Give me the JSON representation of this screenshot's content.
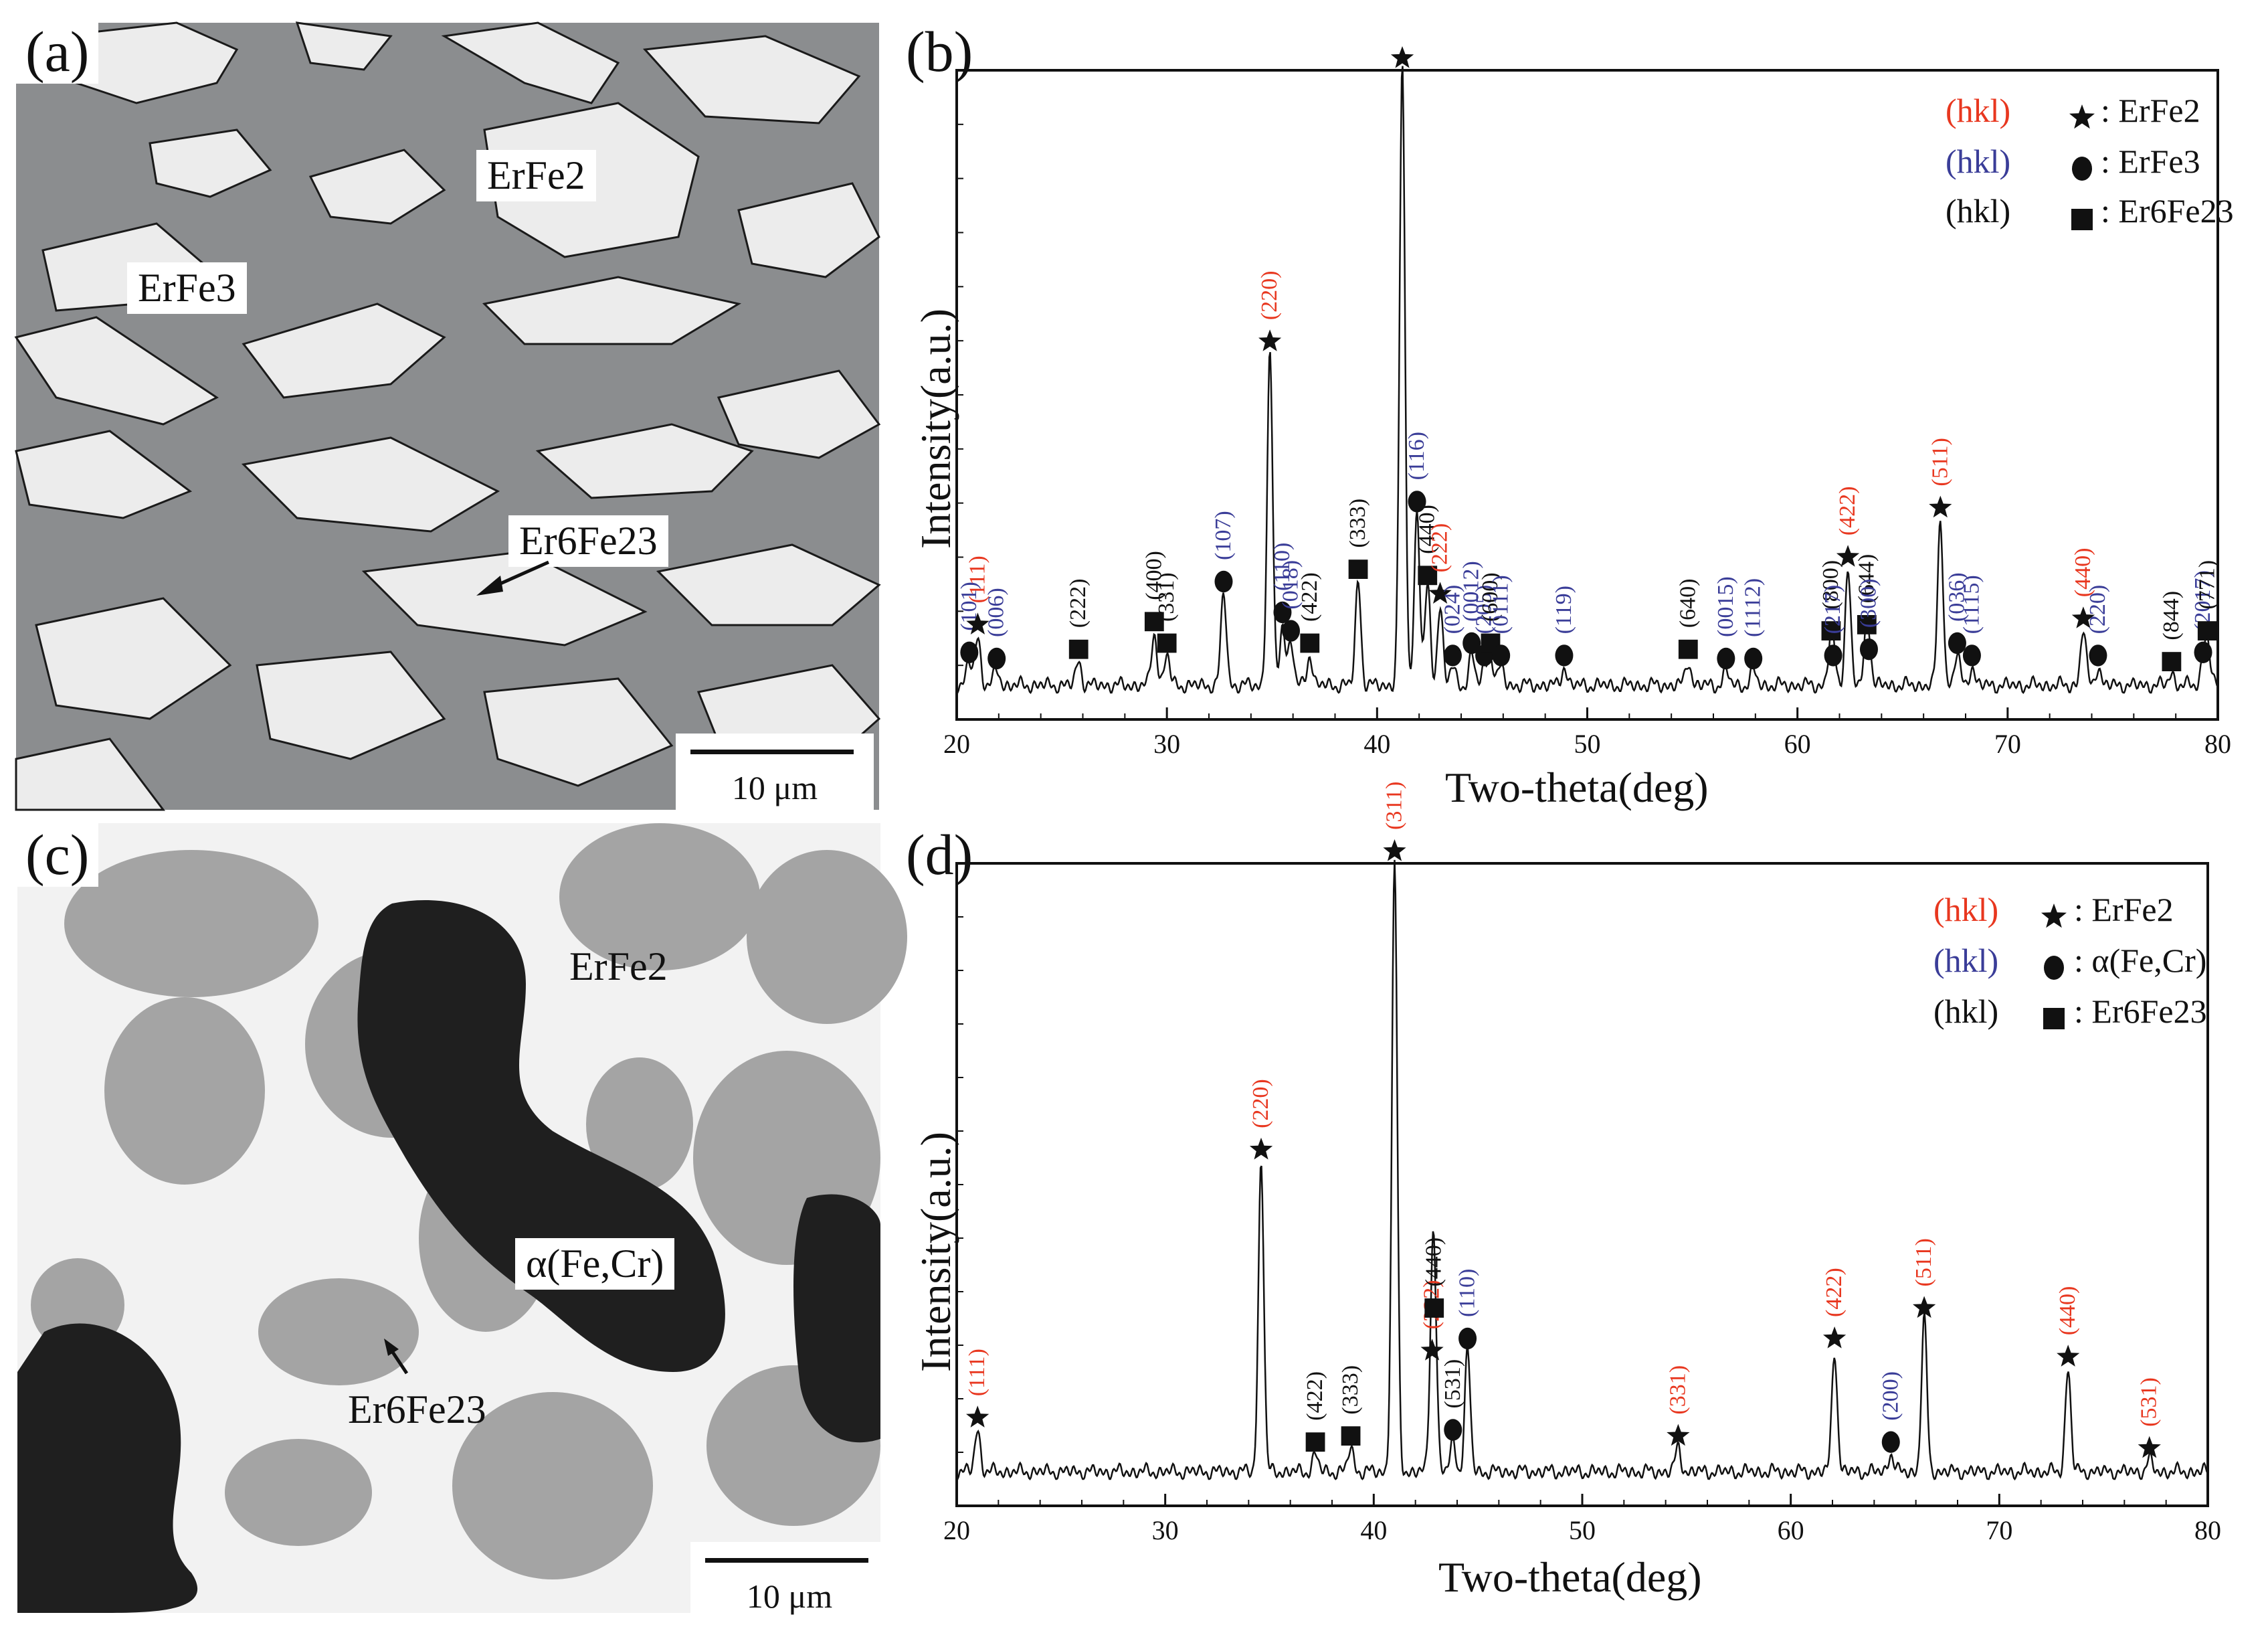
{
  "panel_a": {
    "label": "(a)",
    "phases": [
      "ErFe2",
      "ErFe3",
      "Er6Fe23"
    ],
    "scale_label": "10 μm"
  },
  "panel_c": {
    "label": "(c)",
    "phases": [
      "ErFe2",
      "α(Fe,Cr)",
      "Er6Fe23"
    ],
    "scale_label": "10 μm"
  },
  "colors": {
    "erfe2": "#e8371f",
    "erfe3": "#3a3d98",
    "er6fe23": "#111111"
  },
  "chart_data": [
    {
      "type": "line",
      "panel_label": "(b)",
      "xlabel": "Two-theta(deg)",
      "ylabel": "Intensity(a.u.)",
      "xlim": [
        20,
        80
      ],
      "ylim": [
        0,
        100
      ],
      "x_ticks": [
        "20",
        "30",
        "40",
        "50",
        "60",
        "70",
        "80"
      ],
      "legend": [
        {
          "hkl": "(hkl)",
          "symbol": "star",
          "phase": ": ErFe2",
          "color_key": "erfe2"
        },
        {
          "hkl": "(hkl)",
          "symbol": "circle",
          "phase": ": ErFe3",
          "color_key": "erfe3"
        },
        {
          "hkl": "(hkl)",
          "symbol": "square",
          "phase": ": Er6Fe23",
          "color_key": "er6fe23"
        }
      ],
      "peaks": [
        {
          "x": 20.6,
          "h": 3.5,
          "sym": "circle",
          "label": "(101)",
          "phase": "erfe3"
        },
        {
          "x": 21.0,
          "h": 8,
          "sym": "star",
          "label": "(111)",
          "phase": "erfe2"
        },
        {
          "x": 21.9,
          "h": 2.5,
          "sym": "circle",
          "label": "(006)",
          "phase": "erfe3"
        },
        {
          "x": 25.8,
          "h": 4,
          "sym": "square",
          "label": "(222)",
          "phase": "er6fe23"
        },
        {
          "x": 29.4,
          "h": 8.5,
          "sym": "square",
          "label": "(400)",
          "phase": "er6fe23"
        },
        {
          "x": 30.0,
          "h": 5,
          "sym": "square",
          "label": "(331)",
          "phase": "er6fe23"
        },
        {
          "x": 32.7,
          "h": 15,
          "sym": "circle",
          "label": "(107)",
          "phase": "erfe3"
        },
        {
          "x": 34.9,
          "h": 54,
          "sym": "star",
          "label": "(220)",
          "phase": "erfe2"
        },
        {
          "x": 35.5,
          "h": 10,
          "sym": "circle",
          "label": "(110)",
          "phase": "erfe3"
        },
        {
          "x": 35.9,
          "h": 7,
          "sym": "circle",
          "label": "(018)",
          "phase": "erfe3"
        },
        {
          "x": 36.8,
          "h": 5,
          "sym": "square",
          "label": "(422)",
          "phase": "er6fe23"
        },
        {
          "x": 39.1,
          "h": 17,
          "sym": "square",
          "label": "(333)",
          "phase": "er6fe23"
        },
        {
          "x": 41.2,
          "h": 100,
          "sym": "star",
          "label": "",
          "phase": "erfe2"
        },
        {
          "x": 41.9,
          "h": 28,
          "sym": "circle",
          "label": "(116)",
          "phase": "erfe3"
        },
        {
          "x": 42.4,
          "h": 16,
          "sym": "square",
          "label": "(440)",
          "phase": "er6fe23"
        },
        {
          "x": 43.0,
          "h": 13,
          "sym": "star",
          "label": "(222)",
          "phase": "erfe2"
        },
        {
          "x": 43.6,
          "h": 3,
          "sym": "circle",
          "label": "(024)",
          "phase": "erfe3"
        },
        {
          "x": 44.5,
          "h": 5,
          "sym": "circle",
          "label": "(0012)",
          "phase": "erfe3"
        },
        {
          "x": 45.1,
          "h": 3,
          "sym": "circle",
          "label": "(205)",
          "phase": "erfe3"
        },
        {
          "x": 45.4,
          "h": 5,
          "sym": "square",
          "label": "(600)",
          "phase": "er6fe23"
        },
        {
          "x": 45.9,
          "h": 3,
          "sym": "circle",
          "label": "(0111)",
          "phase": "erfe3"
        },
        {
          "x": 48.9,
          "h": 3,
          "sym": "circle",
          "label": "(119)",
          "phase": "erfe3"
        },
        {
          "x": 54.8,
          "h": 4,
          "sym": "square",
          "label": "(640)",
          "phase": "er6fe23"
        },
        {
          "x": 56.6,
          "h": 2.5,
          "sym": "circle",
          "label": "(0015)",
          "phase": "erfe3"
        },
        {
          "x": 57.9,
          "h": 2.5,
          "sym": "circle",
          "label": "(1112)",
          "phase": "erfe3"
        },
        {
          "x": 61.6,
          "h": 7,
          "sym": "square",
          "label": "(800)",
          "phase": "er6fe23"
        },
        {
          "x": 61.7,
          "h": 3,
          "sym": "circle",
          "label": "(217)",
          "phase": "erfe3"
        },
        {
          "x": 62.4,
          "h": 19,
          "sym": "star",
          "label": "(422)",
          "phase": "erfe2"
        },
        {
          "x": 63.3,
          "h": 8,
          "sym": "square",
          "label": "(644)",
          "phase": "er6fe23"
        },
        {
          "x": 63.4,
          "h": 4,
          "sym": "circle",
          "label": "(300)",
          "phase": "erfe3"
        },
        {
          "x": 66.8,
          "h": 27,
          "sym": "star",
          "label": "(511)",
          "phase": "erfe2"
        },
        {
          "x": 67.6,
          "h": 5,
          "sym": "circle",
          "label": "(036)",
          "phase": "erfe3"
        },
        {
          "x": 68.3,
          "h": 3,
          "sym": "circle",
          "label": "(1115)",
          "phase": "erfe3"
        },
        {
          "x": 73.6,
          "h": 9,
          "sym": "star",
          "label": "(440)",
          "phase": "erfe2"
        },
        {
          "x": 74.3,
          "h": 3,
          "sym": "circle",
          "label": "(220)",
          "phase": "erfe3"
        },
        {
          "x": 77.8,
          "h": 2,
          "sym": "square",
          "label": "(844)",
          "phase": "er6fe23"
        },
        {
          "x": 79.3,
          "h": 3.5,
          "sym": "circle",
          "label": "(2017)",
          "phase": "erfe3"
        },
        {
          "x": 79.5,
          "h": 7,
          "sym": "square",
          "label": "(771)",
          "phase": "er6fe23"
        }
      ]
    },
    {
      "type": "line",
      "panel_label": "(d)",
      "xlabel": "Two-theta(deg)",
      "ylabel": "Intensity(a.u.)",
      "xlim": [
        20,
        80
      ],
      "ylim": [
        0,
        100
      ],
      "x_ticks": [
        "20",
        "30",
        "40",
        "50",
        "60",
        "70",
        "80"
      ],
      "legend": [
        {
          "hkl": "(hkl)",
          "symbol": "star",
          "phase": ": ErFe2",
          "color_key": "erfe2"
        },
        {
          "hkl": "(hkl)",
          "symbol": "circle",
          "phase": ": α(Fe,Cr)",
          "color_key": "erfe3"
        },
        {
          "hkl": "(hkl)",
          "symbol": "square",
          "phase": ": Er6Fe23",
          "color_key": "er6fe23"
        }
      ],
      "peaks": [
        {
          "x": 21.0,
          "h": 7,
          "sym": "star",
          "label": "(111)",
          "phase": "erfe2"
        },
        {
          "x": 34.6,
          "h": 51,
          "sym": "star",
          "label": "(220)",
          "phase": "erfe2"
        },
        {
          "x": 37.2,
          "h": 3,
          "sym": "square",
          "label": "(422)",
          "phase": "er6fe23"
        },
        {
          "x": 38.9,
          "h": 4,
          "sym": "square",
          "label": "(333)",
          "phase": "er6fe23"
        },
        {
          "x": 41.0,
          "h": 100,
          "sym": "star",
          "label": "(311)",
          "phase": "erfe2"
        },
        {
          "x": 42.8,
          "h": 18,
          "sym": "star",
          "label": "(222)",
          "phase": "erfe2"
        },
        {
          "x": 42.9,
          "h": 25,
          "sym": "square",
          "label": "(440)",
          "phase": "er6fe23"
        },
        {
          "x": 43.8,
          "h": 5,
          "sym": "circle",
          "label": "(531)",
          "phase": "er6fe23"
        },
        {
          "x": 44.5,
          "h": 20,
          "sym": "circle",
          "label": "(110)",
          "phase": "erfe3"
        },
        {
          "x": 54.6,
          "h": 4,
          "sym": "star",
          "label": "(331)",
          "phase": "erfe2"
        },
        {
          "x": 62.1,
          "h": 20,
          "sym": "star",
          "label": "(422)",
          "phase": "erfe2"
        },
        {
          "x": 64.8,
          "h": 3,
          "sym": "circle",
          "label": "(200)",
          "phase": "erfe3"
        },
        {
          "x": 66.4,
          "h": 25,
          "sym": "star",
          "label": "(511)",
          "phase": "erfe2"
        },
        {
          "x": 73.3,
          "h": 17,
          "sym": "star",
          "label": "(440)",
          "phase": "erfe2"
        },
        {
          "x": 77.2,
          "h": 2,
          "sym": "star",
          "label": "(531)",
          "phase": "erfe2"
        }
      ]
    }
  ]
}
